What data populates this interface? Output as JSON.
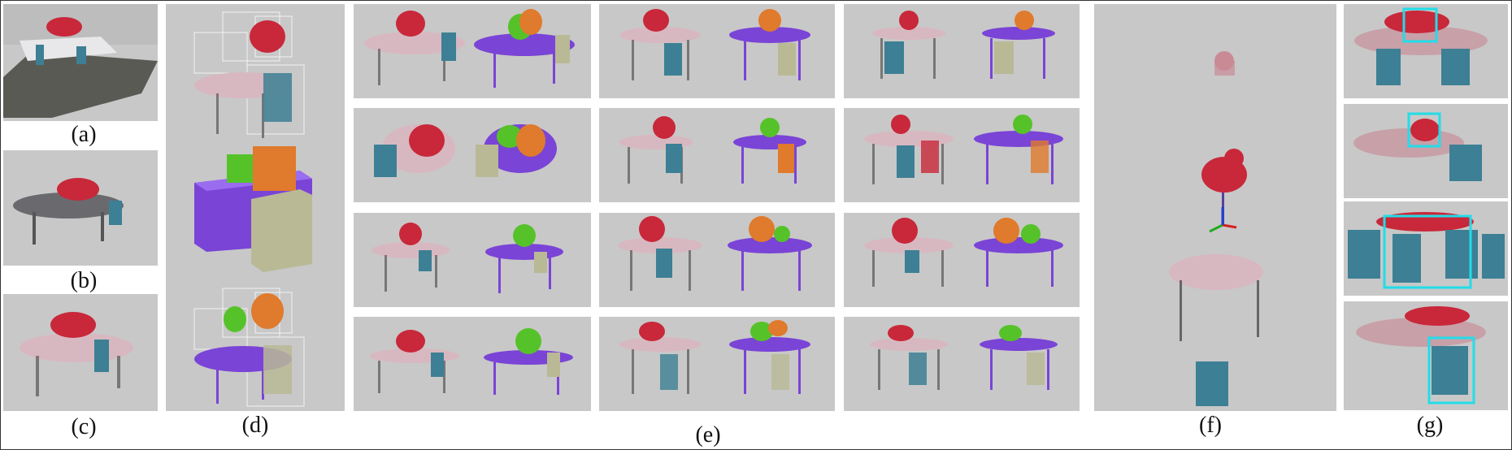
{
  "labels": {
    "a": "(a)",
    "b": "(b)",
    "c": "(c)",
    "d": "(d)",
    "e": "(e)",
    "f": "(f)",
    "g": "(g)"
  },
  "colors": {
    "panel_bg": "#c8c8c8",
    "table_pink": "#d8b8c0",
    "chair_teal": "#3d7f94",
    "purple": "#7a44d6",
    "green": "#56c22a",
    "orange": "#e07a2c",
    "khaki": "#b9b996",
    "red_toy": "#c8283a",
    "cyan_box": "#22dde8"
  }
}
